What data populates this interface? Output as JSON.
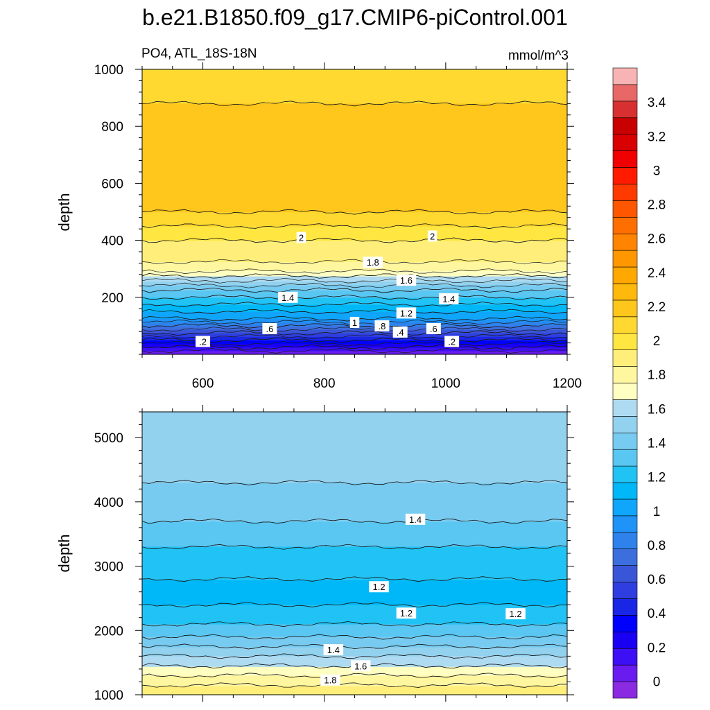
{
  "title": "b.e21.B1850.f09_g17.CMIP6-piControl.001",
  "chart_data": [
    {
      "type": "contour",
      "panel": "upper",
      "left_label": "PO4, ATL_18S-18N",
      "right_label": "mmol/m^3",
      "xlabel": "",
      "ylabel": "depth",
      "xlim": [
        500,
        1200
      ],
      "ylim": [
        1000,
        0
      ],
      "xticks": [
        600,
        800,
        1000,
        1200
      ],
      "yticks": [
        200,
        400,
        600,
        800,
        1000
      ],
      "profile": {
        "depth": [
          0,
          25,
          50,
          75,
          100,
          125,
          150,
          175,
          200,
          225,
          250,
          275,
          300,
          350,
          400,
          450,
          500,
          700,
          880,
          900,
          1000
        ],
        "value": [
          0.0,
          0.2,
          0.4,
          0.6,
          0.8,
          1.0,
          1.1,
          1.2,
          1.3,
          1.4,
          1.55,
          1.7,
          1.85,
          1.95,
          2.0,
          2.1,
          2.2,
          2.25,
          2.2,
          2.15,
          2.1
        ]
      },
      "contour_labels": [
        {
          "text": ".2",
          "x": 600,
          "depth": 45
        },
        {
          "text": ".6",
          "x": 710,
          "depth": 90
        },
        {
          "text": ".4",
          "x": 925,
          "depth": 78
        },
        {
          "text": ".8",
          "x": 895,
          "depth": 100
        },
        {
          "text": "1",
          "x": 850,
          "depth": 112
        },
        {
          "text": ".6",
          "x": 980,
          "depth": 90
        },
        {
          "text": ".2",
          "x": 1010,
          "depth": 45
        },
        {
          "text": "1.2",
          "x": 935,
          "depth": 145
        },
        {
          "text": "1.4",
          "x": 740,
          "depth": 200
        },
        {
          "text": "1.4",
          "x": 1005,
          "depth": 195
        },
        {
          "text": "1.6",
          "x": 935,
          "depth": 260
        },
        {
          "text": "1.8",
          "x": 880,
          "depth": 323
        },
        {
          "text": "2",
          "x": 762,
          "depth": 410
        },
        {
          "text": "2",
          "x": 978,
          "depth": 415
        }
      ]
    },
    {
      "type": "contour",
      "panel": "lower",
      "xlabel": "",
      "ylabel": "depth",
      "xlim": [
        500,
        1200
      ],
      "ylim": [
        5400,
        1000
      ],
      "xticks": [
        600,
        800,
        1000,
        1200
      ],
      "yticks": [
        1000,
        2000,
        3000,
        4000,
        5000
      ],
      "profile": {
        "depth": [
          1000,
          1150,
          1300,
          1450,
          1600,
          1750,
          1900,
          2100,
          2400,
          2600,
          2800,
          3000,
          3300,
          3700,
          4300,
          5400
        ],
        "value": [
          2.0,
          1.9,
          1.8,
          1.7,
          1.6,
          1.5,
          1.4,
          1.3,
          1.2,
          1.15,
          1.2,
          1.25,
          1.3,
          1.4,
          1.5,
          1.55
        ]
      },
      "contour_labels": [
        {
          "text": "1.8",
          "x": 810,
          "depth": 1230
        },
        {
          "text": "1.6",
          "x": 860,
          "depth": 1450
        },
        {
          "text": "1.4",
          "x": 815,
          "depth": 1700
        },
        {
          "text": "1.2",
          "x": 935,
          "depth": 2270
        },
        {
          "text": "1.2",
          "x": 1115,
          "depth": 2260
        },
        {
          "text": "1.2",
          "x": 890,
          "depth": 2680
        },
        {
          "text": "1.4",
          "x": 950,
          "depth": 3730
        }
      ]
    }
  ],
  "colorbar": {
    "levels": [
      -0.1,
      0.0,
      0.1,
      0.2,
      0.3,
      0.4,
      0.5,
      0.6,
      0.7,
      0.8,
      0.9,
      1.0,
      1.1,
      1.2,
      1.3,
      1.4,
      1.5,
      1.6,
      1.7,
      1.8,
      1.9,
      2.0,
      2.1,
      2.2,
      2.3,
      2.4,
      2.5,
      2.6,
      2.7,
      2.8,
      2.9,
      3.0,
      3.1,
      3.2,
      3.3,
      3.4,
      3.5,
      3.6
    ],
    "colors": [
      "#8a2be2",
      "#6a1cf0",
      "#3c0ff5",
      "#1a00f2",
      "#0000ff",
      "#1a26e6",
      "#2e3ee0",
      "#3a56d8",
      "#3c6ede",
      "#2f82ec",
      "#1f93f7",
      "#0fa6fb",
      "#00b8f8",
      "#21c3f5",
      "#5ac7f2",
      "#78cbf0",
      "#93d2ef",
      "#aedbf1",
      "#ffffc2",
      "#fff6a0",
      "#ffef7a",
      "#ffe640",
      "#ffd830",
      "#ffc61c",
      "#ffb80c",
      "#ffa800",
      "#ff9800",
      "#ff8400",
      "#ff6e00",
      "#ff5600",
      "#ff3a00",
      "#ff1a00",
      "#f00000",
      "#d80000",
      "#c80000",
      "#d83030",
      "#e86868",
      "#f8b4b4"
    ],
    "tick_labels": [
      "0",
      "0.2",
      "0.4",
      "0.6",
      "0.8",
      "1",
      "1.2",
      "1.4",
      "1.6",
      "1.8",
      "2",
      "2.2",
      "2.4",
      "2.6",
      "2.8",
      "3",
      "3.2",
      "3.4"
    ]
  }
}
